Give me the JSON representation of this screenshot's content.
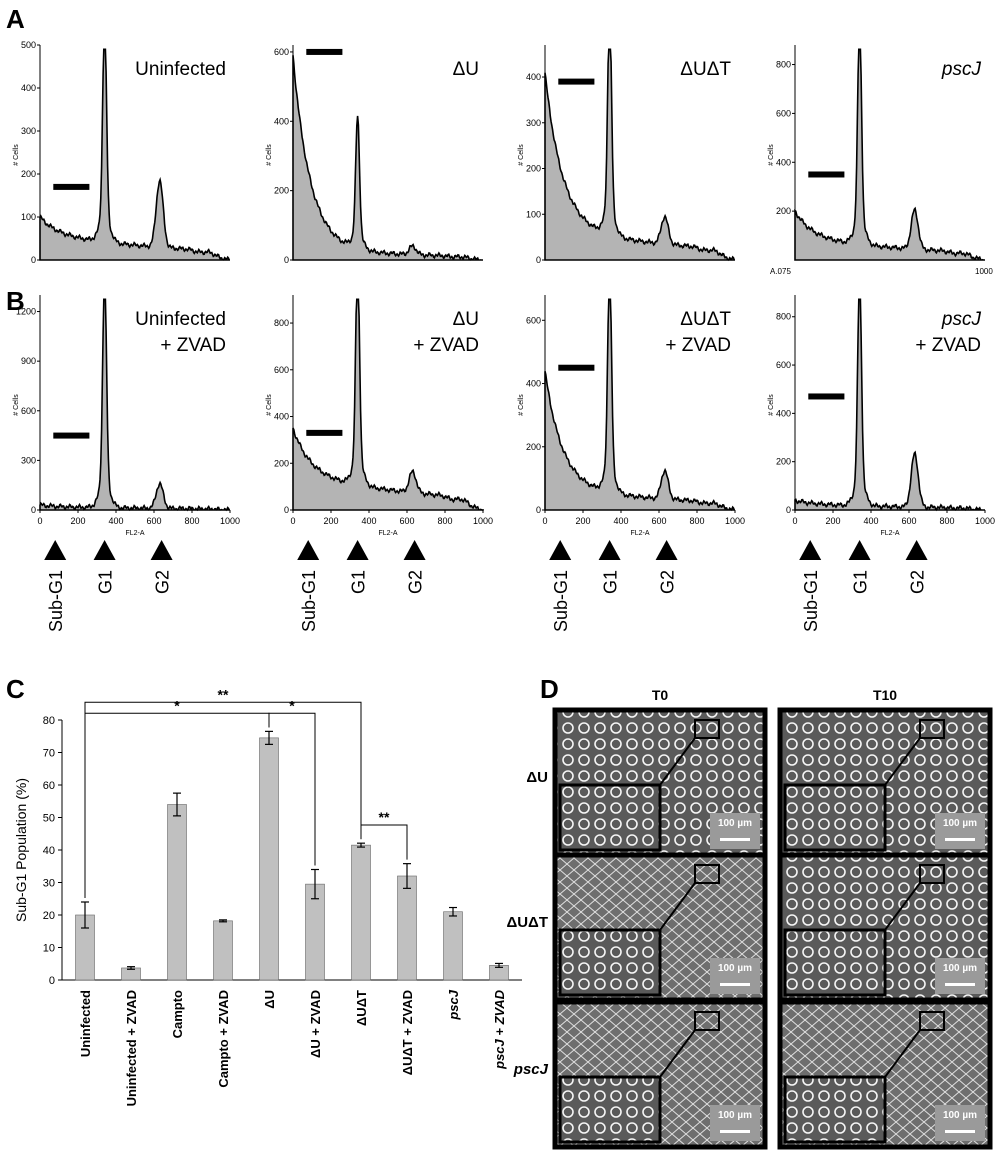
{
  "panels": {
    "a": "A",
    "b": "B",
    "c": "C",
    "d": "D"
  },
  "histogram_rows": [
    {
      "row": "A",
      "items": [
        {
          "title": [
            "Uninfected"
          ],
          "italic": false,
          "ylabel": "# Cells",
          "yticks": [
            "0",
            "100",
            "200",
            "300",
            "400",
            "500"
          ],
          "ymax": 500,
          "bar_y": 170,
          "show_xticks": false,
          "peaks": {
            "base": 60,
            "g1": 470,
            "g2": 155,
            "subg1": 40
          }
        },
        {
          "title": [
            "ΔU"
          ],
          "italic": false,
          "ylabel": "# Cells",
          "yticks": [
            "0",
            "200",
            "400",
            "600"
          ],
          "ymax": 620,
          "bar_y": 600,
          "show_xticks": false,
          "peaks": {
            "base": 30,
            "g1": 340,
            "g2": 25,
            "subg1": 560
          }
        },
        {
          "title": [
            "ΔUΔT"
          ],
          "italic": false,
          "ylabel": "# Cells",
          "yticks": [
            "0",
            "100",
            "200",
            "300",
            "400"
          ],
          "ymax": 470,
          "bar_y": 390,
          "show_xticks": false,
          "peaks": {
            "base": 70,
            "g1": 450,
            "g2": 60,
            "subg1": 340
          }
        },
        {
          "title": [
            "pscJ"
          ],
          "italic": true,
          "ylabel": "# Cells",
          "yticks": [
            "200",
            "400",
            "600",
            "800"
          ],
          "ymax": 880,
          "bar_y": 350,
          "show_xticks": false,
          "extra_xlabels": [
            "A.075",
            "1000"
          ],
          "peaks": {
            "base": 90,
            "g1": 830,
            "g2": 160,
            "subg1": 110
          }
        }
      ]
    },
    {
      "row": "B",
      "items": [
        {
          "title": [
            "Uninfected",
            "+ ZVAD"
          ],
          "italic": false,
          "ylabel": "# Cells",
          "yticks": [
            "0",
            "300",
            "600",
            "900",
            "1200"
          ],
          "ymax": 1300,
          "bar_y": 450,
          "show_xticks": true,
          "peaks": {
            "base": 20,
            "g1": 1270,
            "g2": 150,
            "subg1": 10
          }
        },
        {
          "title": [
            "ΔU",
            "+ ZVAD"
          ],
          "italic": false,
          "ylabel": "# Cells",
          "yticks": [
            "0",
            "200",
            "400",
            "600",
            "800"
          ],
          "ymax": 920,
          "bar_y": 330,
          "show_xticks": true,
          "peaks": {
            "base": 150,
            "g1": 870,
            "g2": 90,
            "subg1": 200
          }
        },
        {
          "title": [
            "ΔUΔT",
            "+ ZVAD"
          ],
          "italic": false,
          "ylabel": "# Cells",
          "yticks": [
            "0",
            "200",
            "400",
            "600"
          ],
          "ymax": 680,
          "bar_y": 450,
          "show_xticks": true,
          "peaks": {
            "base": 70,
            "g1": 640,
            "g2": 90,
            "subg1": 370
          }
        },
        {
          "title": [
            "pscJ",
            "+ ZVAD"
          ],
          "italic": true,
          "ylabel": "# Cells",
          "yticks": [
            "0",
            "200",
            "400",
            "600",
            "800"
          ],
          "ymax": 890,
          "bar_y": 470,
          "show_xticks": true,
          "peaks": {
            "base": 25,
            "g1": 850,
            "g2": 220,
            "subg1": 15
          }
        }
      ]
    }
  ],
  "fl2_xticks": [
    "0",
    "200",
    "400",
    "600",
    "800",
    "1000"
  ],
  "fl2_xlabel": "FL2-A",
  "phase_labels": [
    "Sub-G1",
    "G1",
    "G2"
  ],
  "chart_data": {
    "type": "bar",
    "ylabel": "Sub-G1 Population (%)",
    "ylim": [
      0,
      80
    ],
    "yticks": [
      0,
      10,
      20,
      30,
      40,
      50,
      60,
      70,
      80
    ],
    "categories": [
      "Uninfected",
      "Uninfected + ZVAD",
      "Campto",
      "Campto + ZVAD",
      "ΔU",
      "ΔU + ZVAD",
      "ΔUΔT",
      "ΔUΔT + ZVAD",
      "pscJ",
      "pscJ + ZVAD"
    ],
    "italic_categories": [
      "pscJ",
      "pscJ + ZVAD"
    ],
    "values": [
      20,
      3.7,
      54,
      18.2,
      74.5,
      29.5,
      41.5,
      32,
      21,
      4.5
    ],
    "errors": [
      4,
      0.4,
      3.5,
      0.3,
      2,
      4.5,
      0.6,
      3.8,
      1.3,
      0.6
    ],
    "significance": [
      {
        "from": "Uninfected",
        "to": "ΔU",
        "label": "*"
      },
      {
        "from": "Uninfected",
        "to": "ΔUΔT",
        "label": "**"
      },
      {
        "from": "ΔU",
        "to": "ΔU + ZVAD",
        "label": "*"
      },
      {
        "from": "ΔUΔT",
        "to": "ΔUΔT + ZVAD",
        "label": "**"
      }
    ],
    "bar_color": "#c0c0c0"
  },
  "micrographs": {
    "columns": [
      "T0",
      "T10"
    ],
    "rows": [
      "ΔU",
      "ΔUΔT",
      "pscJ"
    ],
    "scale_label": "100 µm"
  }
}
